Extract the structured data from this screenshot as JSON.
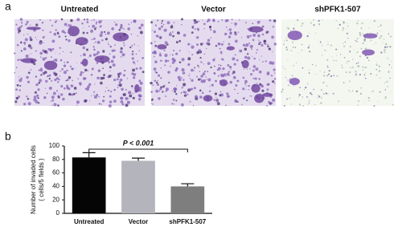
{
  "panels": {
    "a": {
      "label": "a",
      "images": [
        "Untreated",
        "Vector",
        "shPFK1-507"
      ]
    }
  },
  "chart_data": {
    "type": "bar",
    "panel_label": "b",
    "categories": [
      "Untreated",
      "Vector",
      "shPFK1-507"
    ],
    "values": [
      83,
      78,
      40
    ],
    "errors": [
      7,
      4,
      4
    ],
    "colors": [
      "#050505",
      "#b4b4bc",
      "#7e7e7e"
    ],
    "ylabel": [
      "Number of invaded cells",
      "( cells/5 fields )"
    ],
    "annotation": "P < 0.001",
    "ylim": [
      0,
      100
    ],
    "yticks": [
      0,
      20,
      40,
      60,
      80,
      100
    ],
    "grid": false
  }
}
